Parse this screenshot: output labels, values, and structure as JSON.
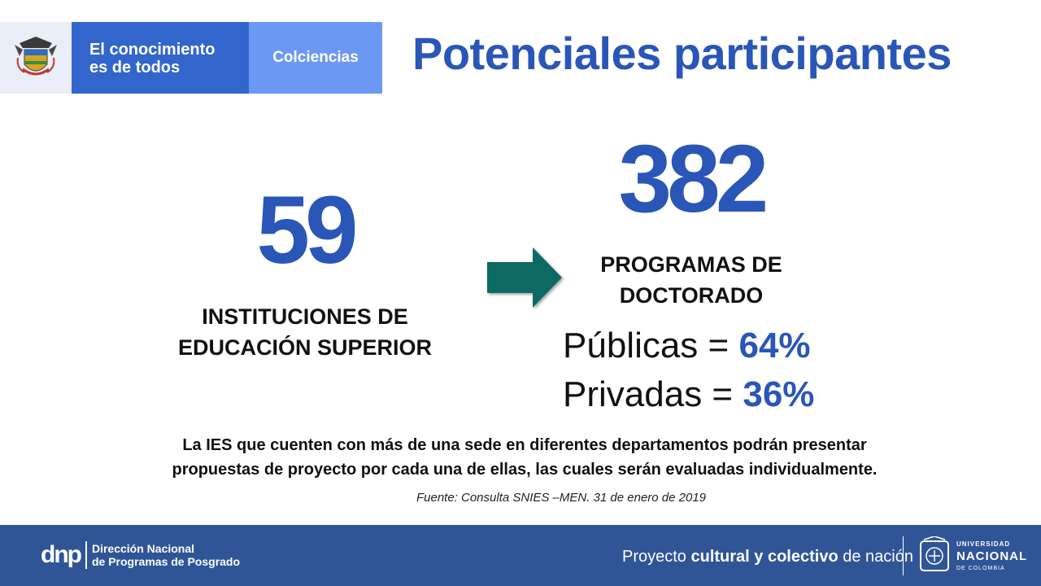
{
  "header": {
    "logo_line1": "El conocimiento",
    "logo_line2": "es de todos",
    "logo_sub": "Colciencias",
    "title": "Potenciales participantes"
  },
  "left_stat": {
    "value": "59",
    "label_line1": "INSTITUCIONES DE",
    "label_line2": "EDUCACIÓN SUPERIOR"
  },
  "right_stat": {
    "value": "382",
    "label_line1": "PROGRAMAS DE",
    "label_line2": "DOCTORADO"
  },
  "breakdown": {
    "public_label": "Públicas = ",
    "public_value": "64%",
    "private_label": "Privadas = ",
    "private_value": "36%"
  },
  "note": {
    "line1": "La IES que cuenten con más de una sede en diferentes departamentos podrán presentar",
    "line2": "propuestas de proyecto por cada una de ellas, las cuales serán evaluadas individualmente."
  },
  "source": "Fuente:  Consulta SNIES –MEN.  31 de enero de 2019",
  "footer": {
    "dnp_mark": "dnp",
    "dnp_line1": "Dirección Nacional",
    "dnp_line2": "de Programas de Posgrado",
    "tagline_a": "Proyecto ",
    "tagline_b": "cultural y colectivo",
    "tagline_c": " de nación",
    "unal_line1": "UNIVERSIDAD",
    "unal_line2": "NACIONAL",
    "unal_line3": "DE COLOMBIA"
  },
  "colors": {
    "accent_blue": "#2a56b8",
    "arrow_green": "#0e6b63",
    "footer_blue": "#2f5597"
  },
  "icons": [
    "colombia-coat-of-arms-icon",
    "right-arrow-icon",
    "dnp-logo-icon",
    "unal-seal-icon"
  ]
}
